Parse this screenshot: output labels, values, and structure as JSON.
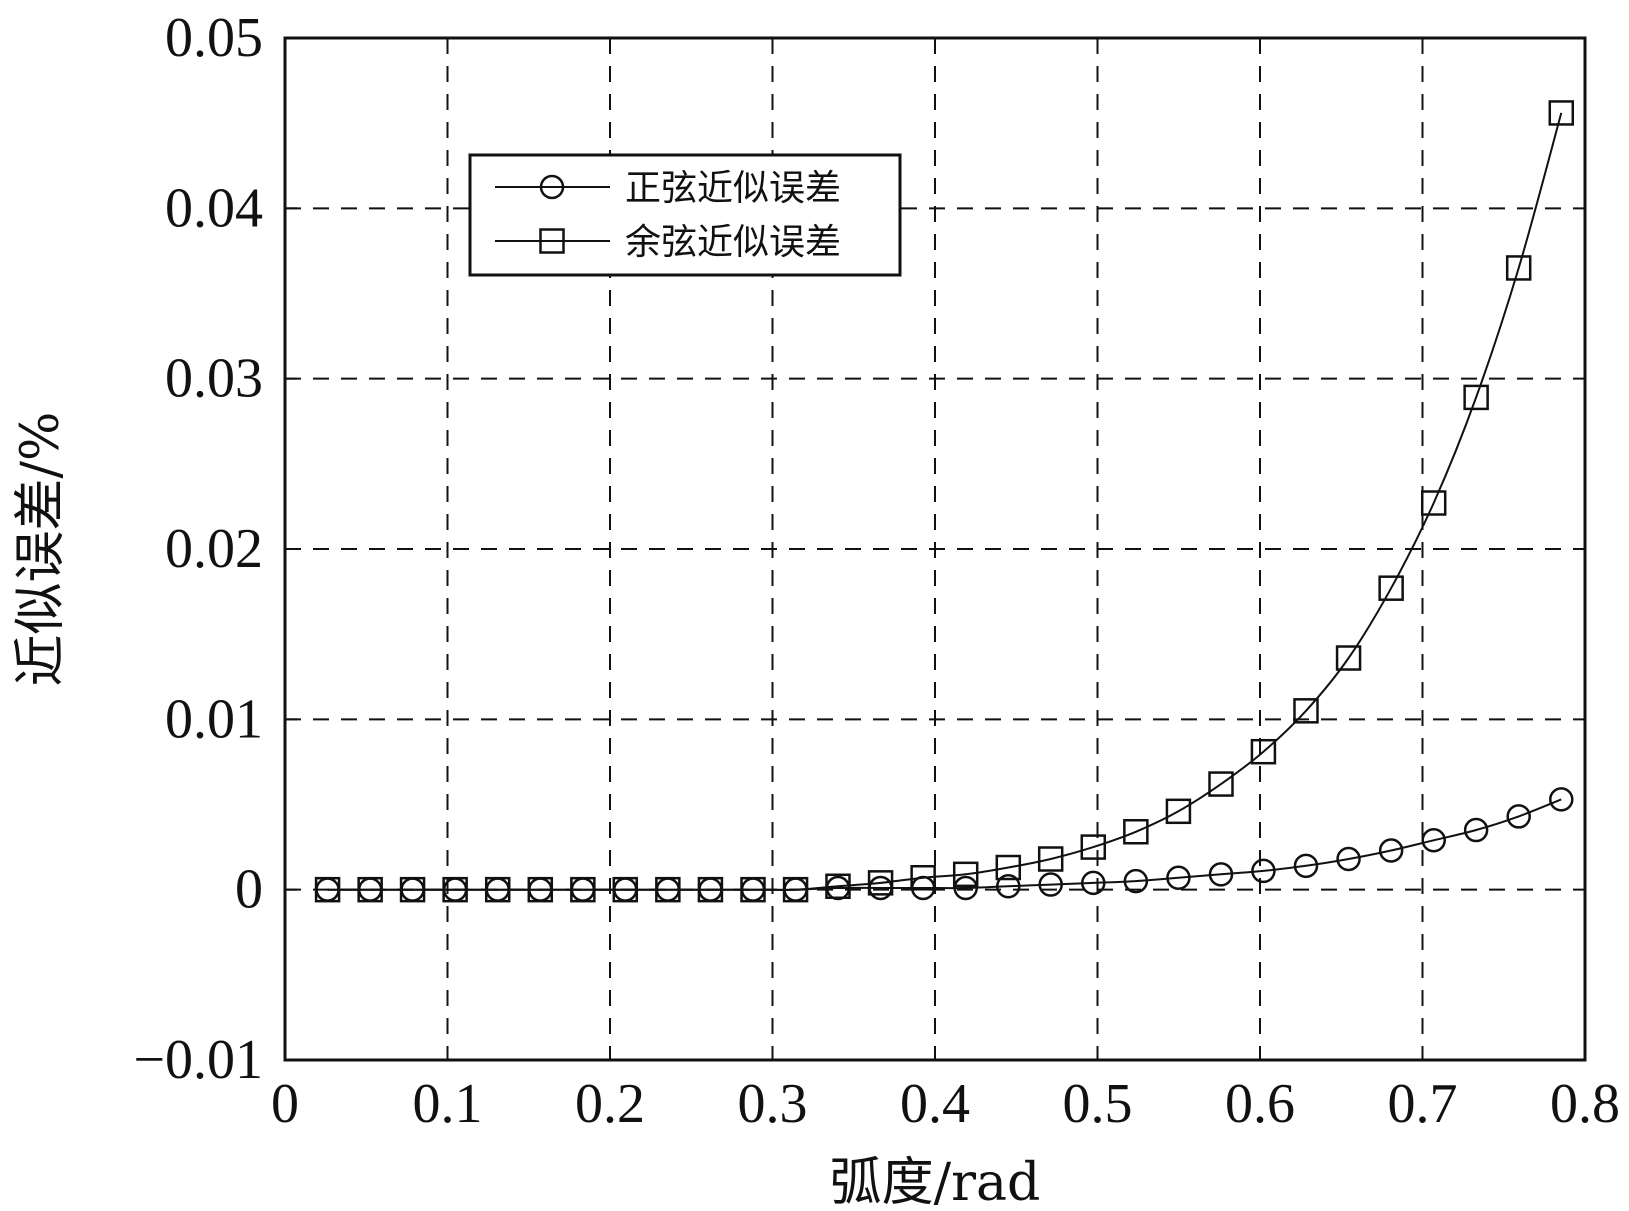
{
  "chart_data": {
    "type": "line",
    "xlabel": "弧度/rad",
    "ylabel": "近似误差/%",
    "xlim": [
      0,
      0.8
    ],
    "ylim": [
      -0.01,
      0.05
    ],
    "grid": true,
    "legend_position": "top-left",
    "x_ticks": [
      "0",
      "0.1",
      "0.2",
      "0.3",
      "0.4",
      "0.5",
      "0.6",
      "0.7",
      "0.8"
    ],
    "y_ticks": [
      "−0.01",
      "0",
      "0.01",
      "0.02",
      "0.03",
      "0.04",
      "0.05"
    ],
    "x": [
      0.0262,
      0.0524,
      0.0785,
      0.1047,
      0.1309,
      0.1571,
      0.1833,
      0.2094,
      0.2356,
      0.2618,
      0.288,
      0.3142,
      0.3403,
      0.3665,
      0.3927,
      0.4189,
      0.4451,
      0.4712,
      0.4974,
      0.5236,
      0.5498,
      0.576,
      0.6021,
      0.6283,
      0.6545,
      0.6807,
      0.7069,
      0.733,
      0.7592,
      0.7854
    ],
    "series": [
      {
        "name": "正弦近似误差",
        "marker": "circle",
        "values": [
          0,
          0,
          0,
          0,
          0,
          0,
          0,
          0,
          0,
          0,
          0,
          0,
          0.0001,
          0.0001,
          0.0001,
          0.0001,
          0.0002,
          0.0003,
          0.0004,
          0.0005,
          0.0007,
          0.0009,
          0.0011,
          0.0014,
          0.0018,
          0.0023,
          0.0029,
          0.0035,
          0.0043,
          0.0053
        ]
      },
      {
        "name": "余弦近似误差",
        "marker": "square",
        "values": [
          0,
          0,
          0,
          0,
          0,
          0,
          0,
          0,
          0,
          0,
          0,
          0,
          0.0002,
          0.0004,
          0.0007,
          0.0009,
          0.0013,
          0.0018,
          0.0025,
          0.0034,
          0.0046,
          0.0062,
          0.0081,
          0.0105,
          0.0136,
          0.0177,
          0.0227,
          0.0289,
          0.0365,
          0.0456
        ]
      }
    ]
  }
}
